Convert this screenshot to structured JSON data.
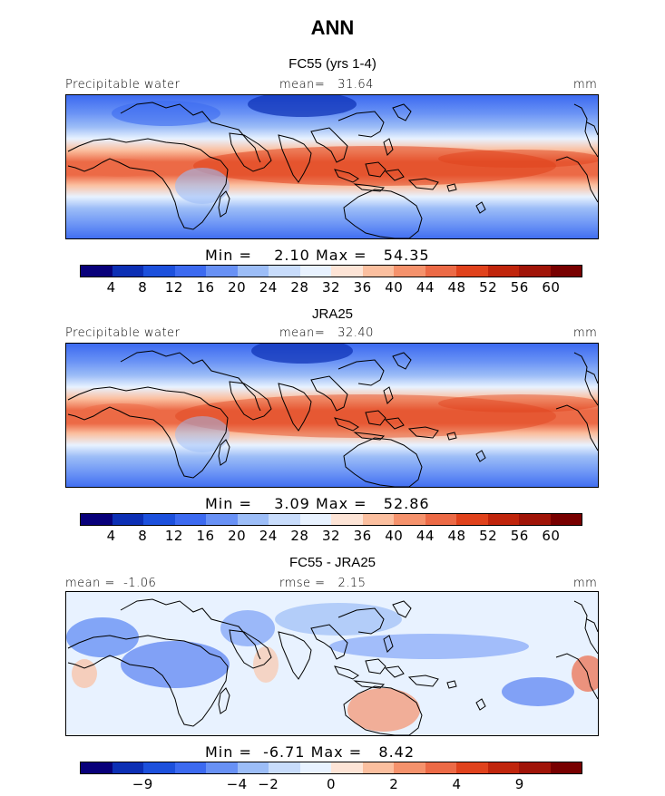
{
  "title": "ANN",
  "units": "mm",
  "palette_full": [
    "#08007a",
    "#0c2fb4",
    "#1c50dc",
    "#3c6af0",
    "#6891f5",
    "#9cbdf7",
    "#c8dcfb",
    "#e8f2ff",
    "#fde4d6",
    "#fbbf9f",
    "#f5926c",
    "#ec6a46",
    "#e0421c",
    "#c0250c",
    "#a01408",
    "#780000"
  ],
  "panels": [
    {
      "id": "fc55",
      "title": "FC55 (yrs 1-4)",
      "variable": "Precipitable water",
      "mean_label": "mean=",
      "mean_value": "31.64",
      "units": "mm",
      "min_label": "Min =",
      "min_value": "2.10",
      "max_label": "Max =",
      "max_value": "54.35",
      "colorbar_labels": [
        "4",
        "8",
        "12",
        "16",
        "20",
        "24",
        "28",
        "32",
        "36",
        "40",
        "44",
        "48",
        "52",
        "56",
        "60"
      ]
    },
    {
      "id": "jra25",
      "title": "JRA25",
      "variable": "Precipitable water",
      "mean_label": "mean=",
      "mean_value": "32.40",
      "units": "mm",
      "min_label": "Min =",
      "min_value": "3.09",
      "max_label": "Max =",
      "max_value": "52.86",
      "colorbar_labels": [
        "4",
        "8",
        "12",
        "16",
        "20",
        "24",
        "28",
        "32",
        "36",
        "40",
        "44",
        "48",
        "52",
        "56",
        "60"
      ]
    },
    {
      "id": "diff",
      "title": "FC55 - JRA25",
      "mean_label": "mean =",
      "mean_value": "-1.06",
      "rmse_label": "rmse =",
      "rmse_value": "2.15",
      "units": "mm",
      "min_label": "Min =",
      "min_value": "-6.71",
      "max_label": "Max =",
      "max_value": "8.42",
      "colorbar_labels": [
        "−9",
        "−4",
        "−2",
        "0",
        "2",
        "4",
        "9"
      ]
    }
  ]
}
